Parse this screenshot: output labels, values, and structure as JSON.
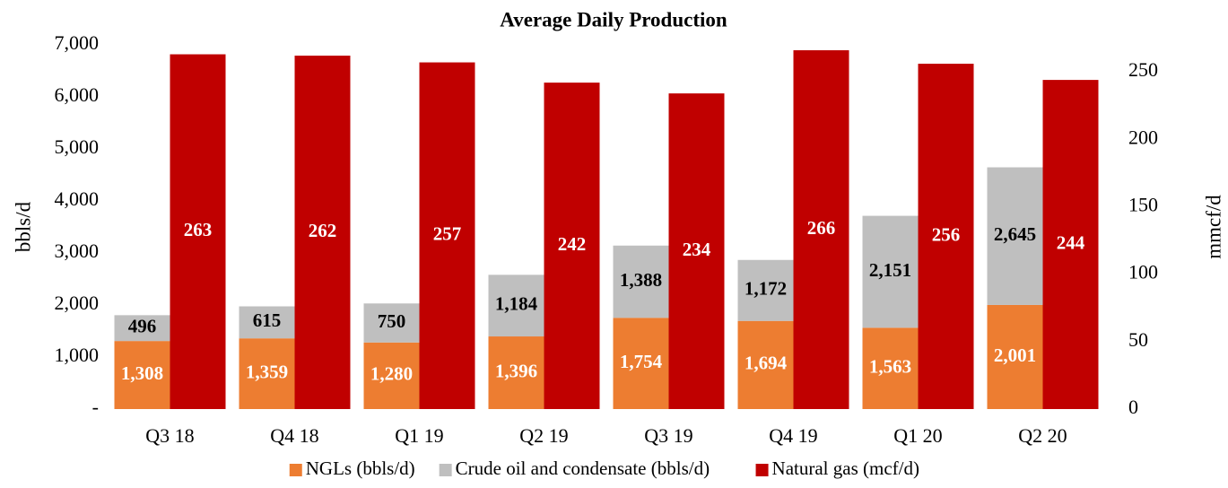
{
  "chart_data": {
    "type": "bar",
    "title": "Average Daily Production",
    "y_label": "bbls/d",
    "y2_label": "mmcf/d",
    "categories": [
      "Q3 18",
      "Q4 18",
      "Q1 19",
      "Q2 19",
      "Q3 19",
      "Q4 19",
      "Q1 20",
      "Q2 20"
    ],
    "series": [
      {
        "name": "NGLs (bbls/d)",
        "color": "#ED7D31",
        "stack": "oil",
        "label_color": "#ffffff",
        "values": [
          1308,
          1359,
          1280,
          1396,
          1754,
          1694,
          1563,
          2001
        ],
        "value_labels": [
          "1,308",
          "1,359",
          "1,280",
          "1,396",
          "1,754",
          "1,694",
          "1,563",
          "2,001"
        ]
      },
      {
        "name": "Crude oil and condensate (bbls/d)",
        "color": "#BFBFBF",
        "stack": "oil",
        "label_color": "#000000",
        "values": [
          496,
          615,
          750,
          1184,
          1388,
          1172,
          2151,
          2645
        ],
        "value_labels": [
          "496",
          "615",
          "750",
          "1,184",
          "1,388",
          "1,172",
          "2,151",
          "2,645"
        ]
      },
      {
        "name": "Natural gas (mcf/d)",
        "color": "#C00000",
        "axis": "y2",
        "label_color": "#ffffff",
        "values": [
          263,
          262,
          257,
          242,
          234,
          266,
          256,
          244
        ]
      }
    ],
    "ylim": [
      0,
      7000
    ],
    "yticks": [
      {
        "value": 0,
        "label": "-"
      },
      {
        "value": 1000,
        "label": "1,000"
      },
      {
        "value": 2000,
        "label": "2,000"
      },
      {
        "value": 3000,
        "label": "3,000"
      },
      {
        "value": 4000,
        "label": "4,000"
      },
      {
        "value": 5000,
        "label": "5,000"
      },
      {
        "value": 6000,
        "label": "6,000"
      },
      {
        "value": 7000,
        "label": "7,000"
      }
    ],
    "y2lim": [
      0,
      270
    ],
    "y2ticks": [
      0,
      50,
      100,
      150,
      200,
      250
    ],
    "legend": "bottom"
  }
}
